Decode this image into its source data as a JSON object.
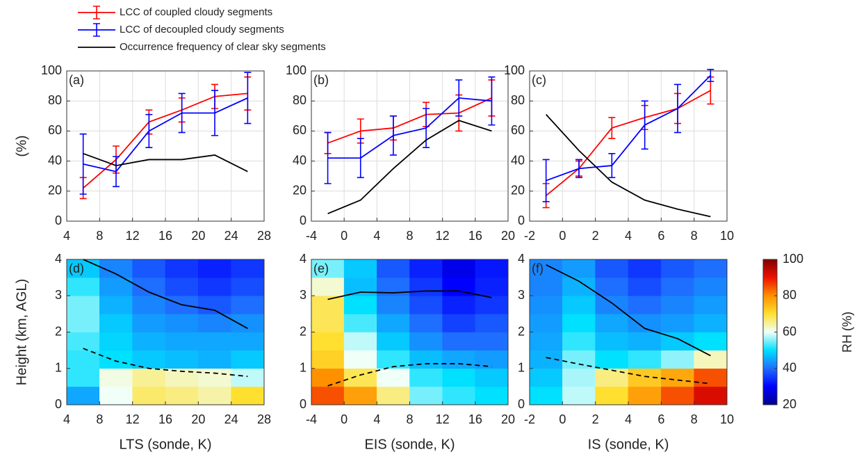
{
  "chart_data": [
    {
      "type": "line",
      "label": "(a)",
      "ylabel": "(%)",
      "grid": true,
      "x": [
        6,
        10,
        14,
        18,
        22,
        26
      ],
      "xlim": [
        4,
        28
      ],
      "xticks": [
        4,
        8,
        12,
        16,
        20,
        24,
        28
      ],
      "ylim": [
        0,
        100
      ],
      "yticks": [
        0,
        20,
        40,
        60,
        80,
        100
      ],
      "series": [
        {
          "name": "LCC of coupled cloudy segments",
          "color": "#ff0000",
          "values": [
            22,
            41,
            66,
            74,
            83,
            85
          ],
          "errors": [
            7,
            9,
            8,
            8,
            8,
            11
          ]
        },
        {
          "name": "LCC of decoupled cloudy segments",
          "color": "#0000ff",
          "values": [
            38,
            33,
            60,
            72,
            72,
            82
          ],
          "errors": [
            20,
            10,
            11,
            13,
            15,
            17
          ]
        },
        {
          "name": "Occurrence frequency of clear sky segments",
          "color": "#000000",
          "values": [
            45,
            37,
            41,
            41,
            44,
            33
          ]
        }
      ]
    },
    {
      "type": "line",
      "label": "(b)",
      "grid": true,
      "x": [
        -2,
        2,
        6,
        10,
        14,
        18
      ],
      "xlim": [
        -4,
        20
      ],
      "xticks": [
        -4,
        0,
        4,
        8,
        12,
        16,
        20
      ],
      "ylim": [
        0,
        100
      ],
      "yticks": [
        0,
        20,
        40,
        60,
        80,
        100
      ],
      "series": [
        {
          "name": "LCC of coupled cloudy segments",
          "color": "#ff0000",
          "values": [
            52,
            60,
            62,
            71,
            72,
            82
          ],
          "errors": [
            7,
            8,
            8,
            8,
            12,
            12
          ]
        },
        {
          "name": "LCC of decoupled cloudy segments",
          "color": "#0000ff",
          "values": [
            42,
            42,
            57,
            62,
            82,
            80
          ],
          "errors": [
            17,
            13,
            13,
            13,
            12,
            16
          ]
        },
        {
          "name": "Occurrence frequency of clear sky segments",
          "color": "#000000",
          "values": [
            5,
            14,
            35,
            54,
            67,
            60
          ]
        }
      ]
    },
    {
      "type": "line",
      "label": "(c)",
      "grid": true,
      "x": [
        -1,
        1,
        3,
        5,
        7,
        9
      ],
      "xlim": [
        -2,
        10
      ],
      "xticks": [
        -2,
        0,
        2,
        4,
        6,
        8,
        10
      ],
      "ylim": [
        0,
        100
      ],
      "yticks": [
        0,
        20,
        40,
        60,
        80,
        100
      ],
      "series": [
        {
          "name": "LCC of coupled cloudy segments",
          "color": "#ff0000",
          "values": [
            17,
            35,
            62,
            69,
            75,
            87
          ],
          "errors": [
            8,
            5,
            7,
            8,
            10,
            9
          ]
        },
        {
          "name": "LCC of decoupled cloudy segments",
          "color": "#0000ff",
          "values": [
            27,
            35,
            37,
            64,
            75,
            97
          ],
          "errors": [
            14,
            6,
            8,
            16,
            16,
            4
          ]
        },
        {
          "name": "Occurrence frequency of clear sky segments",
          "color": "#000000",
          "values": [
            71,
            47,
            26,
            14,
            8,
            3
          ]
        }
      ]
    },
    {
      "type": "heatmap",
      "label": "(d)",
      "ylabel": "Height (km, AGL)",
      "xlabel": "LTS (sonde, K)",
      "xbins": [
        4,
        8,
        12,
        16,
        20,
        24,
        28
      ],
      "ybins": [
        0,
        0.5,
        1,
        1.5,
        2,
        2.5,
        3,
        3.5,
        4
      ],
      "xlim": [
        4,
        28
      ],
      "xticks": [
        4,
        8,
        12,
        16,
        20,
        24,
        28
      ],
      "ylim": [
        0,
        4
      ],
      "yticks": [
        0,
        1,
        2,
        3,
        4
      ],
      "zlim": [
        20,
        100
      ],
      "colormap": [
        "#00008f",
        "#0000ff",
        "#1e6eff",
        "#00e0ff",
        "#f0fff8",
        "#ffe030",
        "#ff9000",
        "#ee1000",
        "#800000"
      ],
      "z": [
        [
          45,
          60,
          67,
          66,
          64,
          70
        ],
        [
          52,
          61,
          65,
          63,
          62,
          58
        ],
        [
          52,
          50,
          48,
          47,
          46,
          48
        ],
        [
          53,
          49,
          46,
          45,
          45,
          45
        ],
        [
          55,
          48,
          44,
          43,
          42,
          43
        ],
        [
          55,
          46,
          42,
          40,
          38,
          40
        ],
        [
          52,
          44,
          40,
          37,
          35,
          37
        ],
        [
          48,
          42,
          38,
          35,
          33,
          35
        ]
      ],
      "x": [
        6,
        10,
        14,
        18,
        22,
        26
      ],
      "series": [
        {
          "color": "#000000",
          "dash": false,
          "values": [
            4.0,
            3.6,
            3.1,
            2.75,
            2.6,
            2.1
          ]
        },
        {
          "color": "#000000",
          "dash": true,
          "values": [
            1.55,
            1.2,
            1.0,
            0.92,
            0.87,
            0.78
          ]
        }
      ]
    },
    {
      "type": "heatmap",
      "label": "(e)",
      "xlabel": "EIS (sonde, K)",
      "xbins": [
        -4,
        0,
        4,
        8,
        12,
        16,
        20
      ],
      "ybins": [
        0,
        0.5,
        1,
        1.5,
        2,
        2.5,
        3,
        3.5,
        4
      ],
      "xlim": [
        -4,
        20
      ],
      "xticks": [
        -4,
        0,
        4,
        8,
        12,
        16,
        20
      ],
      "ylim": [
        0,
        4
      ],
      "yticks": [
        0,
        1,
        2,
        3,
        4
      ],
      "zlim": [
        20,
        100
      ],
      "colormap": [
        "#00008f",
        "#0000ff",
        "#1e6eff",
        "#00e0ff",
        "#f0fff8",
        "#ffe030",
        "#ff9000",
        "#ee1000",
        "#800000"
      ],
      "z": [
        [
          85,
          78,
          66,
          55,
          52,
          50
        ],
        [
          80,
          68,
          60,
          52,
          50,
          48
        ],
        [
          72,
          60,
          52,
          47,
          45,
          44
        ],
        [
          70,
          58,
          48,
          43,
          40,
          40
        ],
        [
          68,
          53,
          45,
          40,
          36,
          38
        ],
        [
          68,
          50,
          42,
          37,
          33,
          35
        ],
        [
          62,
          47,
          40,
          35,
          30,
          33
        ],
        [
          55,
          48,
          38,
          33,
          28,
          32
        ]
      ],
      "x": [
        -2,
        2,
        6,
        10,
        14,
        18
      ],
      "series": [
        {
          "color": "#000000",
          "dash": false,
          "values": [
            2.9,
            3.1,
            3.08,
            3.13,
            3.13,
            2.95
          ]
        },
        {
          "color": "#000000",
          "dash": true,
          "values": [
            0.52,
            0.82,
            1.05,
            1.13,
            1.13,
            1.05
          ]
        }
      ]
    },
    {
      "type": "heatmap",
      "label": "(f)",
      "xlabel": "IS (sonde, K)",
      "xbins": [
        -2,
        0,
        2,
        4,
        6,
        8,
        10
      ],
      "ybins": [
        0,
        0.5,
        1,
        1.5,
        2,
        2.5,
        3,
        3.5,
        4
      ],
      "xlim": [
        -2,
        10
      ],
      "xticks": [
        -2,
        0,
        2,
        4,
        6,
        8,
        10
      ],
      "ylim": [
        0,
        4
      ],
      "yticks": [
        0,
        1,
        2,
        3,
        4
      ],
      "zlim": [
        20,
        100
      ],
      "zticks": [
        20,
        40,
        60,
        80,
        100
      ],
      "colorbar_label": "RH (%)",
      "colormap": [
        "#00008f",
        "#0000ff",
        "#1e6eff",
        "#00e0ff",
        "#f0fff8",
        "#ffe030",
        "#ff9000",
        "#ee1000",
        "#800000"
      ],
      "z": [
        [
          50,
          58,
          70,
          78,
          85,
          92
        ],
        [
          48,
          57,
          66,
          73,
          77,
          85
        ],
        [
          46,
          55,
          50,
          52,
          56,
          63
        ],
        [
          45,
          52,
          47,
          46,
          48,
          50
        ],
        [
          44,
          50,
          45,
          43,
          44,
          46
        ],
        [
          43,
          48,
          42,
          40,
          42,
          44
        ],
        [
          42,
          46,
          40,
          37,
          40,
          42
        ],
        [
          42,
          44,
          38,
          35,
          38,
          40
        ]
      ],
      "x": [
        -1,
        1,
        3,
        5,
        7,
        9
      ],
      "series": [
        {
          "color": "#000000",
          "dash": false,
          "values": [
            3.85,
            3.4,
            2.8,
            2.1,
            1.82,
            1.35
          ]
        },
        {
          "color": "#000000",
          "dash": true,
          "values": [
            1.3,
            1.12,
            0.95,
            0.78,
            0.68,
            0.58
          ]
        }
      ]
    }
  ]
}
